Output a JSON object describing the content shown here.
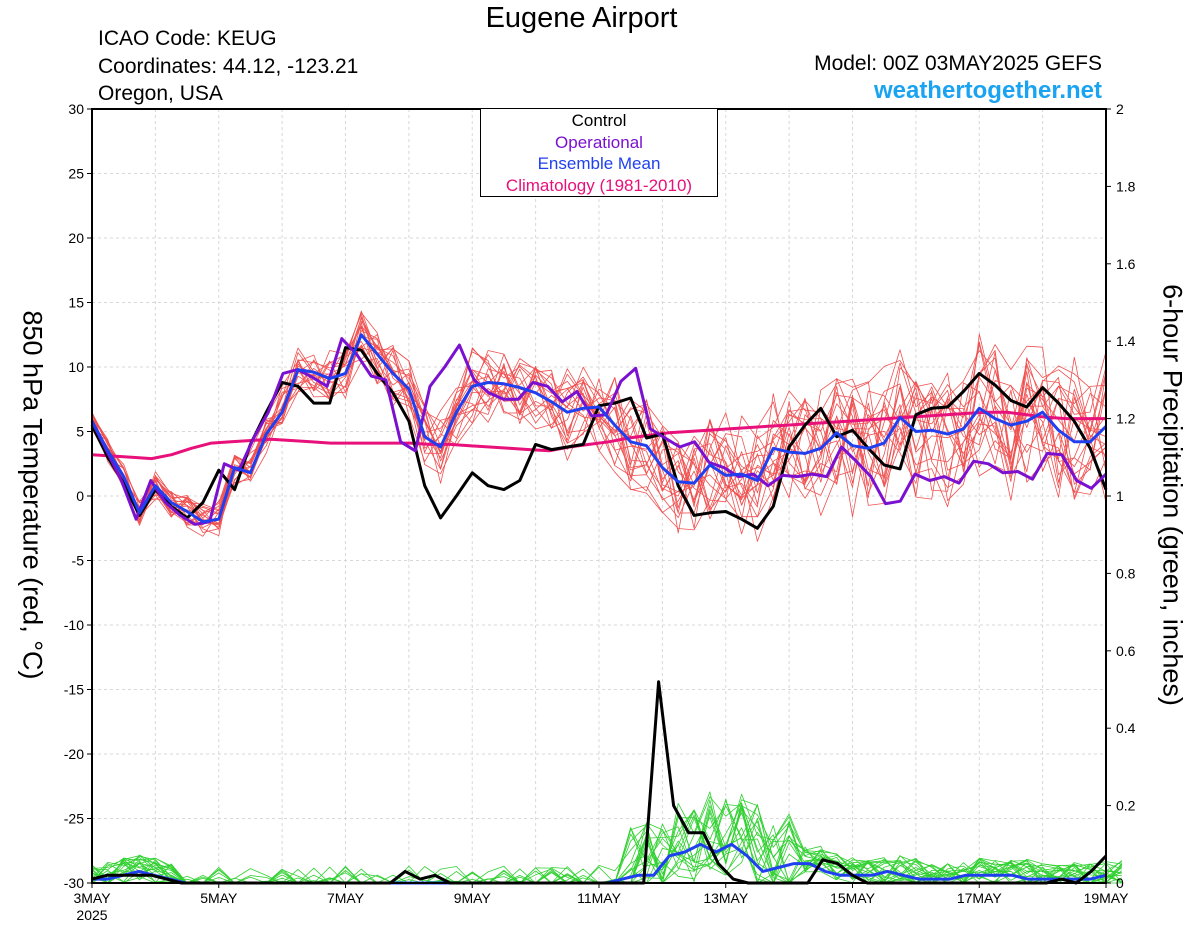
{
  "header": {
    "title": "Eugene Airport",
    "icao": "ICAO Code: KEUG",
    "coordinates": "Coordinates: 44.12, -123.21",
    "region": "Oregon, USA",
    "model": "Model: 00Z 03MAY2025 GEFS",
    "site": "weathertogether.net"
  },
  "legend": {
    "items": [
      "Control",
      "Operational",
      "Ensemble Mean",
      "Climatology (1981-2010)"
    ]
  },
  "colors": {
    "control": "#000000",
    "operational": "#7a10d0",
    "mean": "#2040f0",
    "climatology": "#e8107a",
    "temp_members": "#f05050",
    "precip_members": "#30d030",
    "site": "#1aa3f0"
  },
  "chart_data": {
    "type": "line",
    "x_start": "3MAY 2025 00Z",
    "x_step_hours": 6,
    "x_tick_labels": [
      "3MAY",
      "5MAY",
      "7MAY",
      "9MAY",
      "11MAY",
      "13MAY",
      "15MAY",
      "17MAY",
      "19MAY"
    ],
    "x_year_label": "2025",
    "ylabel_left": "850 hPa Temperature (red, °C)",
    "ylabel_right": "6-hour Precipitation (green, inches)",
    "ylim_left": [
      -30,
      30
    ],
    "ylim_right": [
      0,
      2
    ],
    "yticks_left": [
      "30",
      "25",
      "20",
      "15",
      "10",
      "5",
      "0",
      "-5",
      "-10",
      "-15",
      "-20",
      "-25",
      "-30"
    ],
    "yticks_right": [
      "2",
      "1.8",
      "1.6",
      "1.4",
      "1.2",
      "1",
      "0.8",
      "0.6",
      "0.4",
      "0.2",
      "0"
    ],
    "grid": true,
    "legend_position": "top-center",
    "temperature": {
      "control": [
        5.5,
        3,
        1,
        -1.5,
        0.5,
        -0.8,
        -1.7,
        -0.5,
        2,
        0.5,
        4,
        6.5,
        8.8,
        8.5,
        7.2,
        7.2,
        11.5,
        11.3,
        9.5,
        8,
        5.8,
        0.8,
        -1.7,
        0,
        1.8,
        0.8,
        0.5,
        1.2,
        4,
        3.6,
        3.8,
        4,
        7,
        7.2,
        7.6,
        4.5,
        4.8,
        0.8,
        -1.5,
        -1.3,
        -1.2,
        -1.8,
        -2.5,
        -0.8,
        3.8,
        5.5,
        6.8,
        4.6,
        5.1,
        3.7,
        2.4,
        2.1,
        6.3,
        6.8,
        6.9,
        8.1,
        9.5,
        8.6,
        7.4,
        6.9,
        8.4,
        7.2,
        5.8,
        3.7,
        0.5
      ],
      "operational": [
        5.8,
        3.5,
        1.2,
        -1.8,
        1.2,
        -0.5,
        -1.5,
        -2.2,
        -2,
        2.5,
        2,
        4.5,
        6.5,
        9.5,
        9.8,
        9.2,
        8.5,
        12.2,
        11,
        9.3,
        9,
        4.2,
        3.5,
        8.5,
        10,
        11.7,
        9,
        8,
        7.5,
        7.5,
        8.8,
        8.5,
        7.3,
        8.1,
        6.2,
        6.3,
        8.9,
        9.9,
        5.2,
        4.5,
        3.8,
        4.2,
        2.6,
        2.2,
        1.5,
        1.7,
        0.8,
        1.6,
        1.5,
        1.7,
        1.5,
        3.8,
        2.7,
        1.5,
        -0.6,
        -0.4,
        1.7,
        1.2,
        1.5,
        1,
        2.7,
        2.5,
        1.8,
        1.9,
        1.3,
        3.3,
        3.2,
        1.2,
        0.6,
        1.7
      ],
      "ensemble_mean": [
        5.8,
        3.5,
        1.5,
        -1.3,
        0.8,
        -0.5,
        -1.2,
        -2,
        -1.8,
        2.2,
        1.8,
        4.8,
        6.5,
        9.8,
        9.6,
        9.1,
        9.5,
        12.5,
        11,
        9.5,
        8.3,
        4.6,
        3.8,
        6.5,
        8.5,
        8.8,
        8.7,
        8.4,
        8,
        7.3,
        6.5,
        6.8,
        6.9,
        5.5,
        4.2,
        3.9,
        2.2,
        1.1,
        1,
        2.4,
        1.6,
        1.7,
        1.2,
        3.7,
        3.4,
        3.3,
        3.7,
        4.9,
        3.9,
        3.7,
        4.1,
        6.1,
        5,
        5.1,
        4.8,
        5.2,
        6.8,
        6,
        5.5,
        5.8,
        6.5,
        5.1,
        4.2,
        4.2,
        5.4
      ],
      "climatology": [
        3.2,
        3.1,
        3.0,
        2.9,
        3.2,
        3.7,
        4.1,
        4.2,
        4.3,
        4.4,
        4.3,
        4.2,
        4.1,
        4.1,
        4.1,
        4.1,
        4.1,
        4.0,
        4.0,
        3.9,
        3.8,
        3.7,
        3.6,
        3.5,
        3.8,
        4.0,
        4.2,
        4.5,
        4.7,
        4.9,
        5.0,
        5.1,
        5.2,
        5.3,
        5.4,
        5.5,
        5.6,
        5.7,
        5.8,
        5.9,
        6.0,
        6.1,
        6.2,
        6.3,
        6.4,
        6.5,
        6.5,
        6.3,
        6.1,
        6.0,
        6.0,
        6.0
      ]
    },
    "precipitation": {
      "control": [
        0.01,
        0.02,
        0.02,
        0.02,
        0.02,
        0.01,
        0,
        0,
        0,
        0,
        0,
        0,
        0,
        0,
        0,
        0,
        0,
        0,
        0,
        0,
        0,
        0.03,
        0.01,
        0.02,
        0,
        0,
        0,
        0,
        0,
        0,
        0,
        0,
        0,
        0,
        0,
        0,
        0,
        0,
        0.52,
        0.2,
        0.13,
        0.13,
        0.05,
        0.01,
        0,
        0,
        0,
        0,
        0,
        0.06,
        0.05,
        0.02,
        0,
        0,
        0,
        0,
        0,
        0,
        0,
        0,
        0,
        0,
        0,
        0,
        0,
        0.01,
        0,
        0.03,
        0.07
      ],
      "ensemble_mean": [
        0.01,
        0.01,
        0.02,
        0.03,
        0.02,
        0.01,
        0,
        0,
        0,
        0,
        0,
        0,
        0,
        0,
        0,
        0,
        0,
        0,
        0,
        0,
        0,
        0,
        0,
        0,
        0,
        0,
        0,
        0,
        0,
        0,
        0,
        0,
        0,
        0,
        0.01,
        0.02,
        0.02,
        0.07,
        0.08,
        0.1,
        0.08,
        0.1,
        0.07,
        0.03,
        0.04,
        0.05,
        0.05,
        0.03,
        0.02,
        0.02,
        0.02,
        0.03,
        0.02,
        0.01,
        0.01,
        0.01,
        0.02,
        0.02,
        0.02,
        0.02,
        0.01,
        0.01,
        0.01,
        0.01,
        0.01,
        0.02
      ]
    },
    "ensemble_member_count": 20
  }
}
